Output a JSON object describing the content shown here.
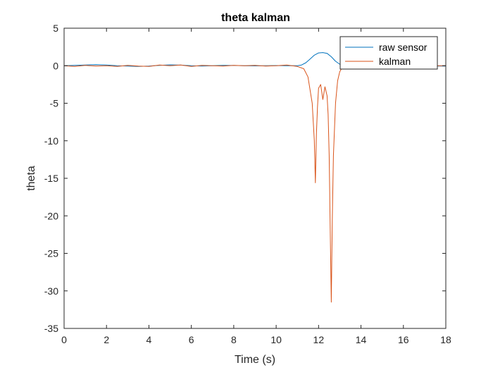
{
  "chart_data": {
    "type": "line",
    "title": "theta kalman",
    "xlabel": "Time (s)",
    "ylabel": "theta",
    "xlim": [
      0,
      18
    ],
    "ylim": [
      -35,
      5
    ],
    "xticks": [
      0,
      2,
      4,
      6,
      8,
      10,
      12,
      14,
      16,
      18
    ],
    "yticks": [
      5,
      0,
      -5,
      -10,
      -15,
      -20,
      -25,
      -30,
      -35
    ],
    "grid": false,
    "legend": "top-right",
    "series": [
      {
        "name": "raw sensor",
        "color": "#0072BD",
        "x": [
          0,
          0.5,
          1,
          1.5,
          2,
          2.5,
          3,
          3.5,
          4,
          4.5,
          5,
          5.5,
          6,
          6.5,
          7,
          7.5,
          8,
          8.5,
          9,
          9.5,
          10,
          10.5,
          11,
          11.2,
          11.4,
          11.6,
          11.8,
          12.0,
          12.2,
          12.4,
          12.6,
          12.8,
          13.0,
          13.2,
          13.5,
          14,
          15,
          16,
          17,
          18
        ],
        "y": [
          0.0,
          0.05,
          0.1,
          0.15,
          0.1,
          0.0,
          -0.05,
          -0.1,
          -0.05,
          0.05,
          0.12,
          0.08,
          0.0,
          -0.05,
          0.0,
          0.05,
          0.03,
          0.0,
          -0.02,
          0.0,
          0.02,
          0.0,
          0.0,
          0.1,
          0.4,
          0.9,
          1.4,
          1.7,
          1.75,
          1.65,
          1.2,
          0.6,
          0.2,
          0.05,
          0.0,
          0.0,
          -0.02,
          0.0,
          -0.03,
          -0.05
        ]
      },
      {
        "name": "kalman",
        "color": "#D95319",
        "x": [
          0,
          0.5,
          1,
          1.5,
          2,
          2.5,
          3,
          3.5,
          4,
          4.5,
          5,
          5.5,
          6,
          6.5,
          7,
          7.5,
          8,
          8.5,
          9,
          9.5,
          10,
          10.5,
          11,
          11.3,
          11.5,
          11.7,
          11.8,
          11.85,
          11.9,
          11.95,
          12.0,
          12.1,
          12.2,
          12.3,
          12.4,
          12.45,
          12.5,
          12.55,
          12.6,
          12.65,
          12.7,
          12.8,
          12.9,
          13.0,
          13.1,
          13.3,
          13.5,
          14,
          15,
          16,
          17,
          18
        ],
        "y": [
          0.0,
          -0.1,
          0.05,
          -0.05,
          0.0,
          -0.1,
          0.05,
          -0.05,
          -0.1,
          0.1,
          0.0,
          0.1,
          -0.1,
          0.05,
          0.0,
          -0.05,
          0.05,
          0.0,
          0.05,
          -0.05,
          0.0,
          0.1,
          -0.1,
          -0.4,
          -1.5,
          -5.0,
          -10.0,
          -15.6,
          -9.0,
          -5.5,
          -3.0,
          -2.5,
          -4.5,
          -2.8,
          -4.0,
          -6.5,
          -12.0,
          -22.0,
          -31.5,
          -20.0,
          -12.0,
          -5.0,
          -2.0,
          -0.8,
          -0.3,
          -0.1,
          0.0,
          0.0,
          0.0,
          0.0,
          0.0,
          0.0
        ]
      }
    ]
  }
}
